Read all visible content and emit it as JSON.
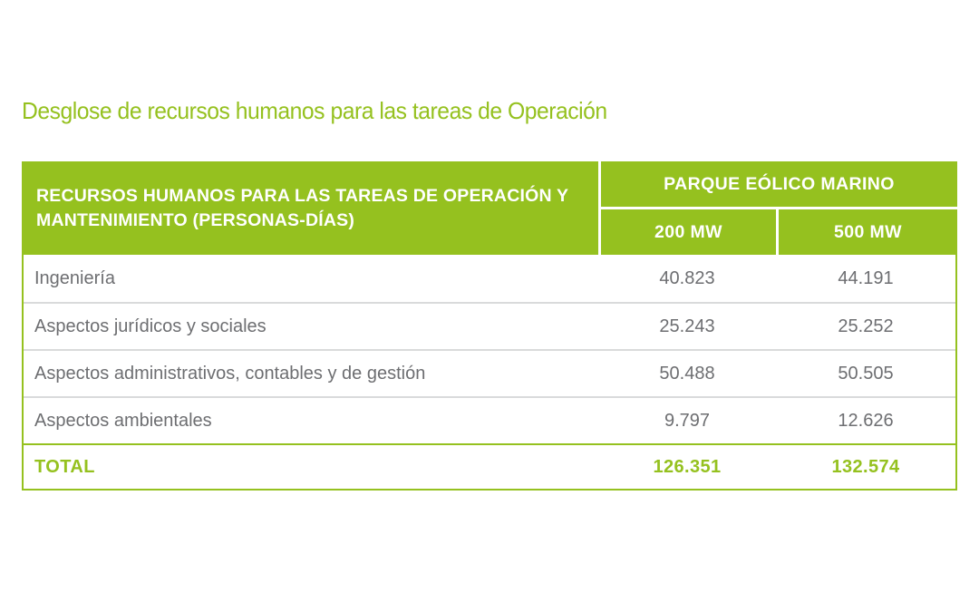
{
  "page": {
    "title": "Desglose de recursos humanos para las tareas de Operación"
  },
  "table": {
    "header": {
      "row_label": "RECURSOS HUMANOS PARA LAS TAREAS DE OPERACIÓN Y MANTENIMIENTO (PERSONAS-DÍAS)",
      "group_label": "PARQUE EÓLICO MARINO",
      "columns": [
        "200 MW",
        "500 MW"
      ]
    },
    "rows": [
      {
        "label": "Ingeniería",
        "mw200": "40.823",
        "mw500": "44.191"
      },
      {
        "label": "Aspectos jurídicos y sociales",
        "mw200": "25.243",
        "mw500": "25.252"
      },
      {
        "label": "Aspectos administrativos, contables y de gestión",
        "mw200": "50.488",
        "mw500": "50.505"
      },
      {
        "label": "Aspectos ambientales",
        "mw200": "9.797",
        "mw500": "12.626"
      }
    ],
    "total": {
      "label": "TOTAL",
      "mw200": "126.351",
      "mw500": "132.574"
    }
  },
  "chart_data": {
    "type": "table",
    "title": "Desglose de recursos humanos para las tareas de Operación",
    "columns": [
      "RECURSOS HUMANOS PARA LAS TAREAS DE OPERACIÓN Y MANTENIMIENTO (PERSONAS-DÍAS)",
      "200 MW",
      "500 MW"
    ],
    "column_group": "PARQUE EÓLICO MARINO",
    "rows": [
      [
        "Ingeniería",
        40823,
        44191
      ],
      [
        "Aspectos jurídicos y sociales",
        25243,
        25252
      ],
      [
        "Aspectos administrativos, contables y de gestión",
        50488,
        50505
      ],
      [
        "Aspectos ambientales",
        9797,
        12626
      ],
      [
        "TOTAL",
        126351,
        132574
      ]
    ]
  },
  "colors": {
    "green": "#95c11f",
    "header_text": "#ffffff",
    "body_text": "#6d6e71",
    "row_separator": "#d9dadb",
    "background": "#ffffff"
  }
}
